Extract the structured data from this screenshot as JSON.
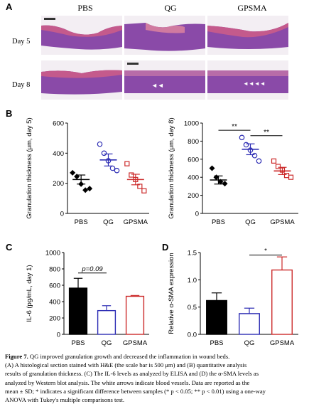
{
  "panel_a": {
    "letter": "A",
    "columns": [
      "PBS",
      "QG",
      "GPSMA"
    ],
    "rows": [
      "Day 5",
      "Day 8"
    ]
  },
  "panel_b": {
    "letter": "B"
  },
  "panel_c": {
    "letter": "C"
  },
  "panel_d": {
    "letter": "D"
  },
  "colors": {
    "PBS": "#000000",
    "QG": "#2d2db4",
    "GPSMA": "#cc2a2a",
    "tissue": "#8a4aa8"
  },
  "chart_data": [
    {
      "id": "B-left",
      "type": "scatter",
      "ylabel": "Granulation thickness (μm, day 5)",
      "categories": [
        "PBS",
        "QG",
        "GPSMA"
      ],
      "ylim": [
        0,
        600
      ],
      "yticks": [
        0,
        200,
        400,
        600
      ],
      "series": [
        {
          "name": "PBS",
          "points": [
            270,
            245,
            195,
            155,
            165
          ],
          "mean": 225,
          "sem": 30
        },
        {
          "name": "QG",
          "points": [
            460,
            400,
            350,
            300,
            285
          ],
          "mean": 355,
          "sem": 40
        },
        {
          "name": "GPSMA",
          "points": [
            330,
            255,
            225,
            180,
            150
          ],
          "mean": 225,
          "sem": 35
        }
      ]
    },
    {
      "id": "B-right",
      "type": "scatter",
      "ylabel": "Granulation thickness (μm, day 8)",
      "categories": [
        "PBS",
        "QG",
        "GPSMA"
      ],
      "ylim": [
        0,
        1000
      ],
      "yticks": [
        0,
        200,
        400,
        600,
        800,
        1000
      ],
      "series": [
        {
          "name": "PBS",
          "points": [
            500,
            400,
            350,
            330
          ],
          "mean": 370,
          "sem": 45
        },
        {
          "name": "QG",
          "points": [
            840,
            760,
            700,
            640,
            580
          ],
          "mean": 710,
          "sem": 60
        },
        {
          "name": "GPSMA",
          "points": [
            580,
            520,
            480,
            420,
            400
          ],
          "mean": 470,
          "sem": 40
        }
      ],
      "annotations": [
        "**",
        "**"
      ]
    },
    {
      "id": "C",
      "type": "bar",
      "ylabel": "IL-6 (pg/mL, day 1)",
      "categories": [
        "PBS",
        "QG",
        "GPSMA"
      ],
      "values": [
        565,
        290,
        465
      ],
      "errors": [
        120,
        60,
        10
      ],
      "ylim": [
        0,
        1000
      ],
      "yticks": [
        0,
        200,
        400,
        600,
        800,
        1000
      ],
      "annotation": "p=0.09"
    },
    {
      "id": "D",
      "type": "bar",
      "ylabel": "Relative α-SMA expression",
      "categories": [
        "PBS",
        "QG",
        "GPSMA"
      ],
      "values": [
        0.62,
        0.38,
        1.18
      ],
      "errors": [
        0.14,
        0.1,
        0.24
      ],
      "ylim": [
        0,
        1.5
      ],
      "yticks": [
        0.0,
        0.5,
        1.0,
        1.5
      ],
      "yticklabels": [
        "0.0",
        "0.5",
        "1.0",
        "1.5"
      ],
      "annotation": "*"
    }
  ],
  "caption": {
    "label": "Figure 7.",
    "lines": [
      " QG improved granulation growth and decreased the inflammation in wound beds.",
      "(A) A histological section stained with H&E (the scale bar is 500 μm) and (B) quantitative analysis",
      "results of granulation thickness. (C) The IL-6 levels as analyzed by ELISA and (D) the α-SMA levels as",
      "analyzed by Western blot analysis. The white arrows indicate blood vessels. Data are reported as the",
      "mean ± SD; * indicates a significant difference between samples (* p < 0.05; ** p < 0.01) using a one-way",
      "ANOVA with Tukey's multiple comparisons test."
    ]
  }
}
